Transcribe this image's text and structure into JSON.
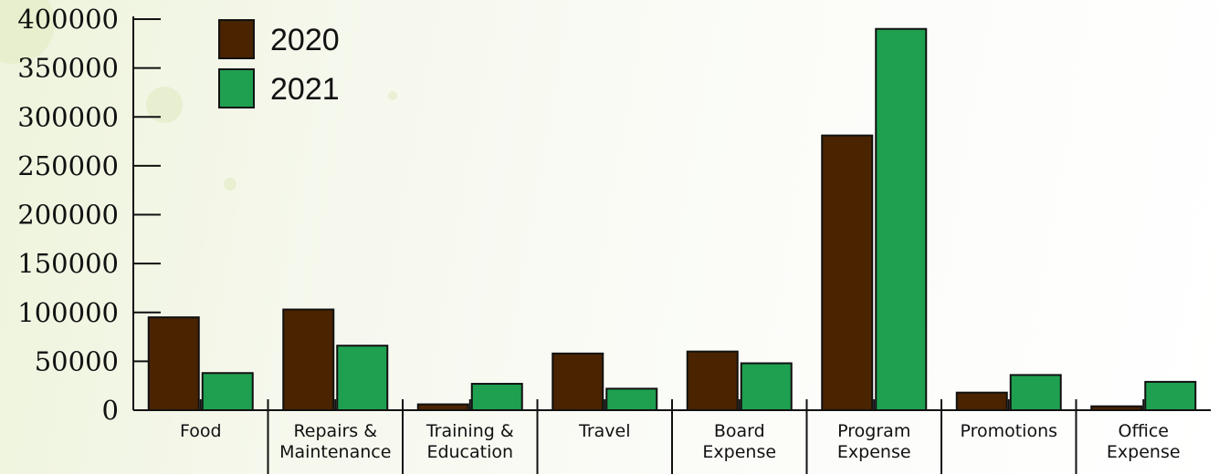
{
  "chart_data": {
    "type": "bar",
    "categories": [
      [
        "Food"
      ],
      [
        "Repairs &",
        "Maintenance"
      ],
      [
        "Training &",
        "Education"
      ],
      [
        "Travel"
      ],
      [
        "Board",
        "Expense"
      ],
      [
        "Program",
        "Expense"
      ],
      [
        "Promotions"
      ],
      [
        "Office",
        "Expense"
      ]
    ],
    "series": [
      {
        "name": "2020",
        "color": "#4a2300",
        "values": [
          95000,
          103000,
          6000,
          58000,
          60000,
          281000,
          18000,
          4000
        ]
      },
      {
        "name": "2021",
        "color": "#1fa050",
        "values": [
          38000,
          66000,
          27000,
          22000,
          48000,
          390000,
          36000,
          29000
        ]
      }
    ],
    "ylim": [
      0,
      400000
    ],
    "yticks": [
      "0",
      "50000",
      "100000",
      "150000",
      "200000",
      "250000",
      "300000",
      "350000",
      "400000"
    ],
    "title": "",
    "xlabel": "",
    "ylabel": "",
    "legend_position": "top-left",
    "grid": false
  }
}
